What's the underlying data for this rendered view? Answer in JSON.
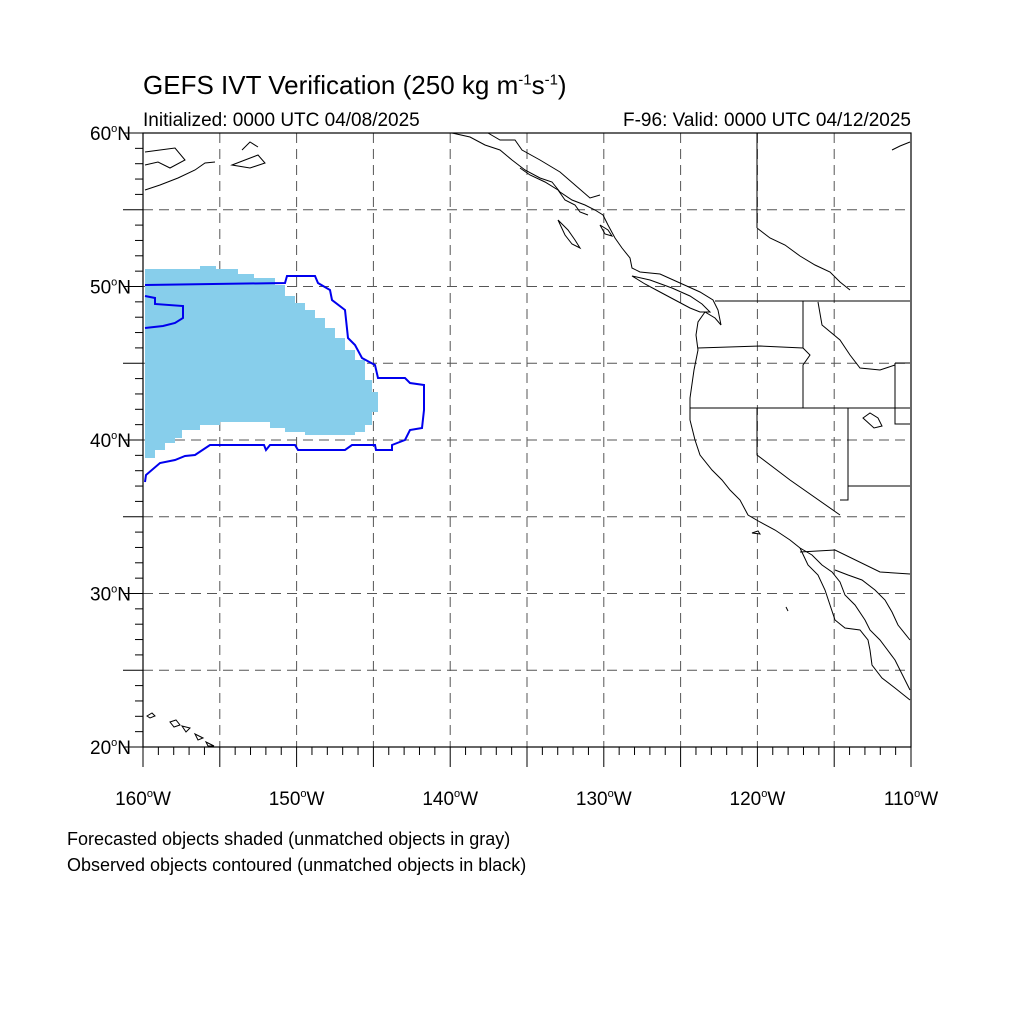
{
  "header": {
    "title_main": "GEFS IVT Verification (250 kg m",
    "title_exp1": "-1",
    "title_mid": "s",
    "title_exp2": "-1",
    "title_end": ")",
    "initialized": "Initialized: 0000 UTC 04/08/2025",
    "valid": "F-96: Valid: 0000 UTC 04/12/2025"
  },
  "map": {
    "lon_range": [
      -160,
      -110
    ],
    "lat_range": [
      20,
      60
    ],
    "lat_labels": [
      {
        "value": 60,
        "text": "60",
        "hemi": "N"
      },
      {
        "value": 50,
        "text": "50",
        "hemi": "N"
      },
      {
        "value": 40,
        "text": "40",
        "hemi": "N"
      },
      {
        "value": 30,
        "text": "30",
        "hemi": "N"
      },
      {
        "value": 20,
        "text": "20",
        "hemi": "N"
      }
    ],
    "lon_labels": [
      {
        "value": -160,
        "text": "160",
        "hemi": "W"
      },
      {
        "value": -150,
        "text": "150",
        "hemi": "W"
      },
      {
        "value": -140,
        "text": "140",
        "hemi": "W"
      },
      {
        "value": -130,
        "text": "130",
        "hemi": "W"
      },
      {
        "value": -120,
        "text": "120",
        "hemi": "W"
      },
      {
        "value": -110,
        "text": "110",
        "hemi": "W"
      }
    ],
    "gridlines_degrees": 5,
    "colors": {
      "forecast_fill": "#87ceeb",
      "observed_contour": "#0000ee",
      "coast": "#000000",
      "grid": "#555555"
    }
  },
  "notes": {
    "line1": "Forecasted objects shaded (unmatched objects in gray)",
    "line2": "Observed objects contoured (unmatched objects in black)"
  }
}
